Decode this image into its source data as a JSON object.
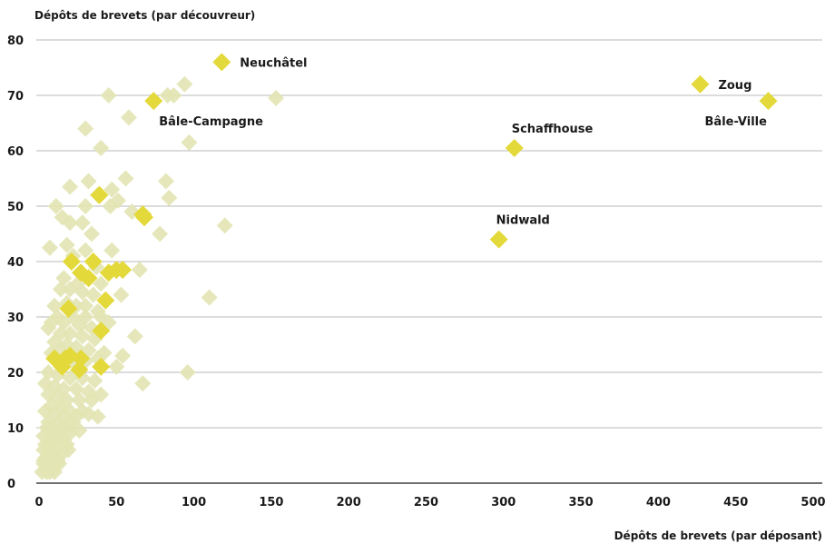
{
  "chart_data": {
    "type": "scatter",
    "title": "",
    "ylabel": "Dépôts de brevets (par découvreur)",
    "xlabel": "Dépôts de brevets (par déposant)",
    "xlim": [
      0,
      500
    ],
    "ylim": [
      0,
      80
    ],
    "xticks": [
      0,
      50,
      100,
      150,
      200,
      250,
      300,
      350,
      400,
      450,
      500
    ],
    "yticks": [
      0,
      10,
      20,
      30,
      40,
      50,
      60,
      70,
      80
    ],
    "grid": "horizontal",
    "legend": "none",
    "colors": {
      "background_points": "#e2e4b2",
      "highlight_points": "#e4d93a",
      "gridline": "#b8b8b8",
      "text": "#1a1a1a"
    },
    "labeled_points": [
      {
        "label": "Neuchâtel",
        "x": 118,
        "y": 76,
        "label_pos": "right"
      },
      {
        "label": "Zoug",
        "x": 427,
        "y": 72,
        "label_pos": "right"
      },
      {
        "label": "Bâle-Ville",
        "x": 471,
        "y": 69,
        "label_pos": "below-left"
      },
      {
        "label": "Bâle-Campagne",
        "x": 74,
        "y": 69,
        "label_pos": "below-right"
      },
      {
        "label": "Schaffhouse",
        "x": 307,
        "y": 60.5,
        "label_pos": "above"
      },
      {
        "label": "Nidwald",
        "x": 297,
        "y": 44,
        "label_pos": "above"
      }
    ],
    "highlight_points": [
      [
        39,
        52
      ],
      [
        67,
        48.5
      ],
      [
        68,
        48
      ],
      [
        21,
        40
      ],
      [
        35,
        40
      ],
      [
        27,
        38
      ],
      [
        45,
        38
      ],
      [
        50,
        38.5
      ],
      [
        54,
        38.5
      ],
      [
        32,
        37
      ],
      [
        43,
        33
      ],
      [
        19,
        31.5
      ],
      [
        40,
        27.5
      ],
      [
        10,
        22.5
      ],
      [
        17,
        22.5
      ],
      [
        20,
        23
      ],
      [
        27,
        22.5
      ],
      [
        15,
        21
      ],
      [
        26,
        20.5
      ],
      [
        40,
        21
      ]
    ],
    "background_points": [
      [
        45,
        70
      ],
      [
        83,
        70
      ],
      [
        87,
        70
      ],
      [
        94,
        72
      ],
      [
        153,
        69.5
      ],
      [
        58,
        66
      ],
      [
        30,
        64
      ],
      [
        97,
        61.5
      ],
      [
        40,
        60.5
      ],
      [
        56,
        55
      ],
      [
        32,
        54.5
      ],
      [
        82,
        54.5
      ],
      [
        20,
        53.5
      ],
      [
        38,
        52
      ],
      [
        47,
        53
      ],
      [
        84,
        51.5
      ],
      [
        11,
        50
      ],
      [
        30,
        50
      ],
      [
        46,
        50
      ],
      [
        51,
        51
      ],
      [
        60,
        49
      ],
      [
        15,
        48
      ],
      [
        20,
        47
      ],
      [
        28,
        47
      ],
      [
        34,
        45
      ],
      [
        78,
        45
      ],
      [
        120,
        46.5
      ],
      [
        18,
        43
      ],
      [
        7,
        42.5
      ],
      [
        30,
        42
      ],
      [
        47,
        42
      ],
      [
        22,
        41
      ],
      [
        37,
        39
      ],
      [
        65,
        38.5
      ],
      [
        16,
        37
      ],
      [
        25,
        36
      ],
      [
        40,
        36
      ],
      [
        14,
        35
      ],
      [
        20,
        35
      ],
      [
        28,
        34.5
      ],
      [
        35,
        34
      ],
      [
        53,
        34
      ],
      [
        110,
        33.5
      ],
      [
        10,
        32
      ],
      [
        18,
        32.5
      ],
      [
        24,
        32
      ],
      [
        30,
        32
      ],
      [
        38,
        31
      ],
      [
        12,
        30
      ],
      [
        22,
        30
      ],
      [
        30,
        30
      ],
      [
        40,
        30
      ],
      [
        8,
        29
      ],
      [
        16,
        29
      ],
      [
        26,
        28.5
      ],
      [
        34,
        28
      ],
      [
        45,
        29
      ],
      [
        6,
        28
      ],
      [
        14,
        27
      ],
      [
        20,
        27
      ],
      [
        28,
        26.5
      ],
      [
        36,
        26
      ],
      [
        62,
        26.5
      ],
      [
        10,
        25.5
      ],
      [
        18,
        25
      ],
      [
        24,
        24.5
      ],
      [
        32,
        24
      ],
      [
        42,
        23.5
      ],
      [
        54,
        23
      ],
      [
        8,
        23.5
      ],
      [
        14,
        24
      ],
      [
        22,
        22
      ],
      [
        30,
        22
      ],
      [
        38,
        22.5
      ],
      [
        50,
        21
      ],
      [
        96,
        20
      ],
      [
        6,
        20
      ],
      [
        12,
        19.5
      ],
      [
        20,
        19
      ],
      [
        28,
        19
      ],
      [
        36,
        18.5
      ],
      [
        67,
        18
      ],
      [
        4,
        18
      ],
      [
        10,
        17.5
      ],
      [
        16,
        17
      ],
      [
        24,
        17
      ],
      [
        32,
        16.5
      ],
      [
        40,
        16
      ],
      [
        6,
        16
      ],
      [
        12,
        15.5
      ],
      [
        18,
        15
      ],
      [
        26,
        15
      ],
      [
        34,
        15
      ],
      [
        8,
        14
      ],
      [
        14,
        13.5
      ],
      [
        20,
        13
      ],
      [
        28,
        13
      ],
      [
        38,
        12
      ],
      [
        4,
        13
      ],
      [
        10,
        12.5
      ],
      [
        16,
        12
      ],
      [
        24,
        12
      ],
      [
        32,
        12.5
      ],
      [
        6,
        11
      ],
      [
        12,
        11
      ],
      [
        18,
        10.5
      ],
      [
        5,
        10
      ],
      [
        9,
        9.5
      ],
      [
        14,
        9
      ],
      [
        20,
        9
      ],
      [
        3,
        8.5
      ],
      [
        7,
        8
      ],
      [
        11,
        8
      ],
      [
        16,
        8
      ],
      [
        4,
        7
      ],
      [
        8,
        7
      ],
      [
        12,
        6.5
      ],
      [
        18,
        7
      ],
      [
        3,
        6
      ],
      [
        6,
        5.5
      ],
      [
        10,
        5.5
      ],
      [
        14,
        5
      ],
      [
        4,
        4.5
      ],
      [
        8,
        4
      ],
      [
        12,
        4
      ],
      [
        3,
        3.5
      ],
      [
        6,
        3
      ],
      [
        9,
        3
      ],
      [
        4,
        2.5
      ],
      [
        7,
        2
      ],
      [
        5,
        2
      ],
      [
        10,
        2
      ],
      [
        13,
        3.5
      ],
      [
        2,
        2
      ],
      [
        3,
        4
      ],
      [
        15,
        10
      ],
      [
        22,
        11
      ],
      [
        26,
        9.5
      ],
      [
        19,
        6
      ]
    ]
  }
}
